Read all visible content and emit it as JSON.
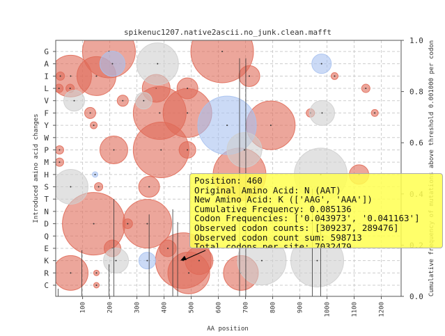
{
  "chart_data": {
    "type": "scatter",
    "title": "spikenuc1207.native2ascii.no_junk.clean.mafft",
    "x_label": "AA position",
    "y_label": "Introduced amino acid changes",
    "y2_label": "Cumulative frequency of mutations above threshold 0.001000 per codon",
    "categories": [
      "G",
      "A",
      "I",
      "L",
      "V",
      "F",
      "Y",
      "W",
      "P",
      "M",
      "H",
      "S",
      "T",
      "N",
      "D",
      "Q",
      "E",
      "K",
      "R",
      "C"
    ],
    "xlim": [
      1,
      1273
    ],
    "xticks": [
      100,
      200,
      300,
      400,
      500,
      600,
      700,
      800,
      900,
      1000,
      1100,
      1200
    ],
    "y2lim": [
      0,
      1
    ],
    "y2ticks": [
      {
        "value": 0,
        "label": "0.0"
      },
      {
        "value": 0.2,
        "label": "0.2"
      },
      {
        "value": 0.4,
        "label": "0.4"
      },
      {
        "value": 0.6,
        "label": "0.6"
      },
      {
        "value": 0.8,
        "label": "0.8"
      },
      {
        "value": 1,
        "label": "1.0"
      }
    ],
    "grid": true,
    "series": [
      {
        "color": "#e06a58",
        "x": [
          197,
          614,
          56,
          151,
          371,
          384,
          486,
          793,
          389,
          215,
          678,
          141,
          338,
          471,
          56,
          683,
          491,
          529,
          1118,
          486,
          714,
          486,
          345,
          414,
          210,
          18,
          13,
          15,
          15,
          54,
          141,
          128,
          248,
          1028,
          1143,
          1176,
          159,
          266,
          939,
          151,
          151
        ],
        "y": [
          "G",
          "G",
          "I",
          "I",
          "L",
          "F",
          "F",
          "Y",
          "P",
          "P",
          "H",
          "D",
          "D",
          "K",
          "R",
          "R",
          "R",
          "K",
          "H",
          "P",
          "I",
          "L",
          "S",
          "E",
          "E",
          "I",
          "L",
          "P",
          "M",
          "L",
          "Y",
          "F",
          "V",
          "I",
          "L",
          "F",
          "S",
          "D",
          "F",
          "R",
          "C"
        ],
        "sizes": [
          38,
          45,
          30,
          28,
          20,
          38,
          35,
          35,
          40,
          20,
          38,
          45,
          35,
          40,
          25,
          25,
          30,
          20,
          14,
          12,
          15,
          15,
          15,
          12,
          12,
          6,
          6,
          6,
          6,
          6,
          5,
          8,
          8,
          5,
          6,
          5,
          6,
          7,
          6,
          4,
          4
        ]
      },
      {
        "color": "#a8c2f0",
        "x": [
          632,
          210,
          980,
          338,
          146
        ],
        "y": [
          "Y",
          "A",
          "A",
          "K",
          "H"
        ],
        "sizes": [
          42,
          18,
          14,
          12,
          4
        ]
      },
      {
        "color": "#cfcfcf",
        "x": [
          376,
          977,
          964,
          760,
          56,
          69,
          982,
          696,
          223,
          325
        ],
        "y": [
          "A",
          "H",
          "K",
          "K",
          "S",
          "V",
          "F",
          "P",
          "K",
          "V"
        ],
        "sizes": [
          30,
          38,
          38,
          35,
          25,
          15,
          18,
          25,
          18,
          12
        ]
      }
    ],
    "lines": {
      "axis": "y2",
      "x": [
        10,
        97,
        197,
        215,
        345,
        432,
        450,
        678,
        701,
        946,
        977
      ],
      "values": [
        0.03,
        0.18,
        0.125,
        0.38,
        0.32,
        0.34,
        0.29,
        0.93,
        0.93,
        0.42,
        0.34
      ]
    },
    "annotation": {
      "x": 460,
      "y": "K",
      "lines": [
        "Position: 460",
        "Original Amino Acid: N (AAT)",
        "New Amino Acid: K (['AAG', 'AAA'])",
        "Cumulative Frequency: 0.085136",
        "Codon Frequencies: ['0.043973', '0.041163']",
        "Observed codon counts: [309237, 289476]",
        "Observed codon count sum: 598713",
        "Total codons per site: 7032479"
      ]
    }
  }
}
